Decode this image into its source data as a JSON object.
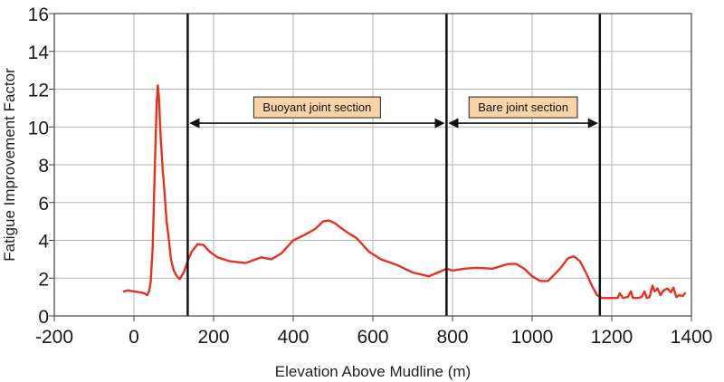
{
  "chart_data": {
    "type": "line",
    "xlabel": "Elevation Above Mudline (m)",
    "ylabel": "Fatigue Improvement Factor",
    "xlim": [
      -200,
      1400
    ],
    "ylim": [
      0,
      16
    ],
    "x_ticks": [
      -200,
      0,
      200,
      400,
      600,
      800,
      1000,
      1200,
      1400
    ],
    "y_ticks": [
      0,
      2,
      4,
      6,
      8,
      10,
      12,
      14,
      16
    ],
    "grid": true,
    "series": [
      {
        "color": "#e8311e",
        "points": [
          [
            -25,
            1.3
          ],
          [
            -15,
            1.35
          ],
          [
            0,
            1.3
          ],
          [
            15,
            1.25
          ],
          [
            25,
            1.2
          ],
          [
            33,
            1.1
          ],
          [
            38,
            1.3
          ],
          [
            42,
            1.8
          ],
          [
            47,
            3.6
          ],
          [
            52,
            7.5
          ],
          [
            57,
            11.2
          ],
          [
            60,
            12.2
          ],
          [
            63,
            11.5
          ],
          [
            67,
            9.5
          ],
          [
            72,
            7.8
          ],
          [
            77,
            6.5
          ],
          [
            82,
            5.0
          ],
          [
            88,
            4.0
          ],
          [
            93,
            3.0
          ],
          [
            100,
            2.4
          ],
          [
            108,
            2.1
          ],
          [
            115,
            1.95
          ],
          [
            125,
            2.3
          ],
          [
            135,
            2.9
          ],
          [
            145,
            3.4
          ],
          [
            160,
            3.8
          ],
          [
            175,
            3.75
          ],
          [
            190,
            3.4
          ],
          [
            210,
            3.1
          ],
          [
            240,
            2.9
          ],
          [
            280,
            2.8
          ],
          [
            300,
            2.95
          ],
          [
            320,
            3.1
          ],
          [
            345,
            3.0
          ],
          [
            370,
            3.3
          ],
          [
            400,
            4.0
          ],
          [
            430,
            4.3
          ],
          [
            455,
            4.6
          ],
          [
            475,
            5.0
          ],
          [
            490,
            5.05
          ],
          [
            505,
            4.9
          ],
          [
            530,
            4.5
          ],
          [
            560,
            4.1
          ],
          [
            590,
            3.4
          ],
          [
            620,
            3.0
          ],
          [
            660,
            2.7
          ],
          [
            700,
            2.3
          ],
          [
            740,
            2.1
          ],
          [
            770,
            2.35
          ],
          [
            785,
            2.5
          ],
          [
            800,
            2.4
          ],
          [
            830,
            2.5
          ],
          [
            860,
            2.55
          ],
          [
            900,
            2.5
          ],
          [
            940,
            2.75
          ],
          [
            960,
            2.75
          ],
          [
            980,
            2.5
          ],
          [
            1000,
            2.1
          ],
          [
            1020,
            1.85
          ],
          [
            1040,
            1.85
          ],
          [
            1070,
            2.5
          ],
          [
            1090,
            3.05
          ],
          [
            1105,
            3.15
          ],
          [
            1120,
            2.9
          ],
          [
            1135,
            2.3
          ],
          [
            1150,
            1.6
          ],
          [
            1163,
            1.1
          ],
          [
            1175,
            0.95
          ],
          [
            1200,
            0.95
          ],
          [
            1215,
            0.95
          ],
          [
            1220,
            1.2
          ],
          [
            1228,
            0.95
          ],
          [
            1240,
            1.0
          ],
          [
            1248,
            1.3
          ],
          [
            1253,
            0.95
          ],
          [
            1265,
            0.95
          ],
          [
            1275,
            1.0
          ],
          [
            1282,
            1.3
          ],
          [
            1288,
            0.95
          ],
          [
            1295,
            1.0
          ],
          [
            1302,
            1.6
          ],
          [
            1308,
            1.3
          ],
          [
            1315,
            1.45
          ],
          [
            1322,
            1.1
          ],
          [
            1330,
            1.35
          ],
          [
            1340,
            1.45
          ],
          [
            1348,
            1.25
          ],
          [
            1355,
            1.5
          ],
          [
            1362,
            1.0
          ],
          [
            1370,
            1.1
          ],
          [
            1378,
            1.05
          ],
          [
            1384,
            1.2
          ]
        ]
      }
    ],
    "vertical_lines": [
      135,
      785,
      1170
    ],
    "annotations": [
      {
        "text": "Buoyant joint section",
        "x_from": 135,
        "x_to": 785,
        "y": 10.2,
        "box_color": "#fbd3a9"
      },
      {
        "text": "Bare joint section",
        "x_from": 785,
        "x_to": 1170,
        "y": 10.2,
        "box_color": "#fbd3a9"
      }
    ]
  }
}
